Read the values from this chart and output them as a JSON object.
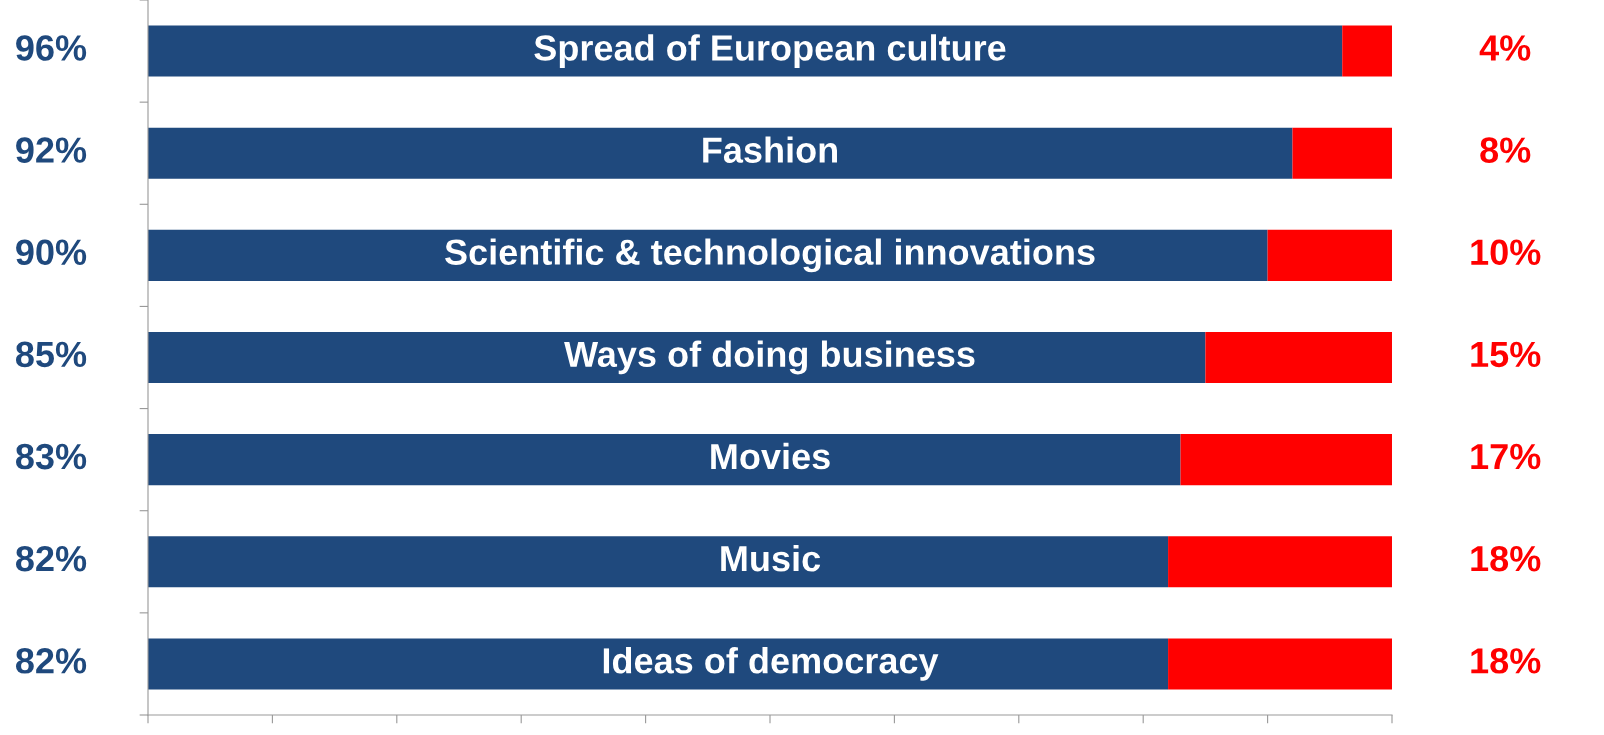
{
  "chart_data": {
    "type": "bar",
    "orientation": "horizontal",
    "stacked": true,
    "categories": [
      "Spread of European culture",
      "Fashion",
      "Scientific & technological innovations",
      "Ways of doing business",
      "Movies",
      "Music",
      "Ideas of democracy"
    ],
    "series": [
      {
        "color": "#1f497d",
        "values": [
          96,
          92,
          90,
          85,
          83,
          82,
          82
        ],
        "value_labels": [
          "96%",
          "92%",
          "90%",
          "85%",
          "83%",
          "82%",
          "82%"
        ]
      },
      {
        "color": "#ff0000",
        "values": [
          4,
          8,
          10,
          15,
          17,
          18,
          18
        ],
        "value_labels": [
          "4%",
          "8%",
          "10%",
          "15%",
          "17%",
          "18%",
          "18%"
        ]
      }
    ],
    "xlim": [
      0,
      100
    ],
    "xticks": [
      {
        "value": 0,
        "label": null
      },
      {
        "value": 10,
        "label": null
      },
      {
        "value": 20,
        "label": null
      },
      {
        "value": 30,
        "label": null
      },
      {
        "value": 40,
        "label": null
      },
      {
        "value": 50,
        "label": null
      },
      {
        "value": 60,
        "label": null
      },
      {
        "value": 70,
        "label": null
      },
      {
        "value": 80,
        "label": null
      },
      {
        "value": 90,
        "label": null
      },
      {
        "value": 100,
        "label": null
      }
    ],
    "grid": false,
    "legend": false
  }
}
